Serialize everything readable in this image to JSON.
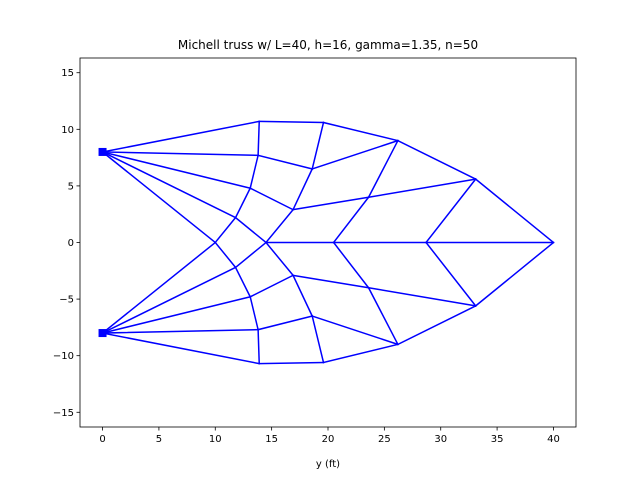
{
  "chart_data": {
    "type": "line",
    "title": "Michell truss w/ L=40, h=16, gamma=1.35, n=50",
    "xlabel": "y (ft)",
    "ylabel": "",
    "xlim": [
      -2,
      42
    ],
    "ylim": [
      -16.3,
      16.3
    ],
    "x_ticks": [
      0,
      5,
      10,
      15,
      20,
      25,
      30,
      35,
      40
    ],
    "y_ticks": [
      -15,
      -10,
      -5,
      0,
      5,
      10,
      15
    ],
    "grid": false,
    "legend": "none",
    "line_color": "#0000ff",
    "support_marker": "square",
    "supports": [
      [
        0,
        8
      ],
      [
        0,
        -8
      ]
    ],
    "nodes": {
      "A": [
        0,
        8
      ],
      "B": [
        0,
        -8
      ],
      "U1": [
        10,
        0
      ],
      "P1": [
        11.8,
        2.2
      ],
      "P2": [
        13.1,
        4.8
      ],
      "P3": [
        13.8,
        7.7
      ],
      "P4": [
        13.9,
        10.7
      ],
      "Q1": [
        14.5,
        0
      ],
      "Q2": [
        16.9,
        2.9
      ],
      "Q3": [
        18.6,
        6.5
      ],
      "Q4": [
        19.6,
        10.6
      ],
      "R1": [
        20.5,
        0
      ],
      "R2": [
        23.6,
        4.0
      ],
      "R3": [
        26.2,
        9.0
      ],
      "S1": [
        28.7,
        0
      ],
      "S2": [
        33.1,
        5.6
      ],
      "T1": [
        40,
        0
      ],
      "P1b": [
        11.8,
        -2.2
      ],
      "P2b": [
        13.1,
        -4.8
      ],
      "P3b": [
        13.8,
        -7.7
      ],
      "P4b": [
        13.9,
        -10.7
      ],
      "Q2b": [
        16.9,
        -2.9
      ],
      "Q3b": [
        18.6,
        -6.5
      ],
      "Q4b": [
        19.6,
        -10.6
      ],
      "R2b": [
        23.6,
        -4.0
      ],
      "R3b": [
        26.2,
        -9.0
      ],
      "S2b": [
        33.1,
        -5.6
      ]
    },
    "members": [
      [
        "A",
        "U1"
      ],
      [
        "A",
        "P1"
      ],
      [
        "A",
        "P2"
      ],
      [
        "A",
        "P3"
      ],
      [
        "A",
        "P4"
      ],
      [
        "B",
        "U1"
      ],
      [
        "B",
        "P1b"
      ],
      [
        "B",
        "P2b"
      ],
      [
        "B",
        "P3b"
      ],
      [
        "B",
        "P4b"
      ],
      [
        "U1",
        "P1"
      ],
      [
        "P1",
        "P2"
      ],
      [
        "P2",
        "P3"
      ],
      [
        "P3",
        "P4"
      ],
      [
        "U1",
        "P1b"
      ],
      [
        "P1b",
        "P2b"
      ],
      [
        "P2b",
        "P3b"
      ],
      [
        "P3b",
        "P4b"
      ],
      [
        "P1",
        "Q1"
      ],
      [
        "Q1",
        "R1"
      ],
      [
        "R1",
        "S1"
      ],
      [
        "S1",
        "T1"
      ],
      [
        "P2",
        "Q2"
      ],
      [
        "Q2",
        "R2"
      ],
      [
        "R2",
        "S2"
      ],
      [
        "P3",
        "Q3"
      ],
      [
        "Q3",
        "R3"
      ],
      [
        "P4",
        "Q4"
      ],
      [
        "Q4",
        "R3"
      ],
      [
        "R3",
        "S2"
      ],
      [
        "S2",
        "T1"
      ],
      [
        "Q1",
        "Q2"
      ],
      [
        "Q2",
        "Q3"
      ],
      [
        "Q3",
        "Q4"
      ],
      [
        "R1",
        "R2"
      ],
      [
        "R2",
        "R3"
      ],
      [
        "S1",
        "S2"
      ],
      [
        "P1b",
        "Q1"
      ],
      [
        "P2b",
        "Q2b"
      ],
      [
        "Q2b",
        "R2b"
      ],
      [
        "R2b",
        "S2b"
      ],
      [
        "P3b",
        "Q3b"
      ],
      [
        "Q3b",
        "R3b"
      ],
      [
        "P4b",
        "Q4b"
      ],
      [
        "Q4b",
        "R3b"
      ],
      [
        "R3b",
        "S2b"
      ],
      [
        "S2b",
        "T1"
      ],
      [
        "Q1",
        "Q2b"
      ],
      [
        "Q2b",
        "Q3b"
      ],
      [
        "Q3b",
        "Q4b"
      ],
      [
        "R1",
        "R2b"
      ],
      [
        "R2b",
        "R3b"
      ],
      [
        "S1",
        "S2b"
      ]
    ]
  }
}
